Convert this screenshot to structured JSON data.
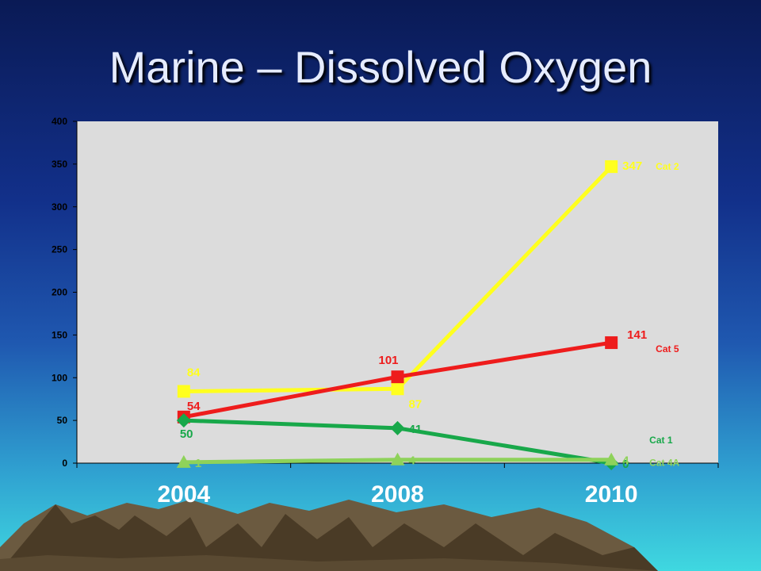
{
  "title": "Marine – Dissolved Oxygen",
  "chart_data": {
    "type": "line",
    "x": [
      "2004",
      "2008",
      "2010"
    ],
    "ylim": [
      0,
      400
    ],
    "yticks": [
      0,
      50,
      100,
      150,
      200,
      250,
      300,
      350,
      400
    ],
    "grid": false,
    "series": [
      {
        "name": "Cat 2",
        "values": [
          84,
          87,
          347
        ],
        "color": "#ffff1e",
        "marker": "square"
      },
      {
        "name": "Cat 5",
        "values": [
          54,
          101,
          141
        ],
        "color": "#ee1c1c",
        "marker": "square"
      },
      {
        "name": "Cat 1",
        "values": [
          50,
          41,
          0
        ],
        "color": "#18a84a",
        "marker": "diamond"
      },
      {
        "name": "Cat 4A",
        "values": [
          1,
          4,
          4
        ],
        "color": "#8ed25a",
        "marker": "triangle"
      }
    ]
  }
}
